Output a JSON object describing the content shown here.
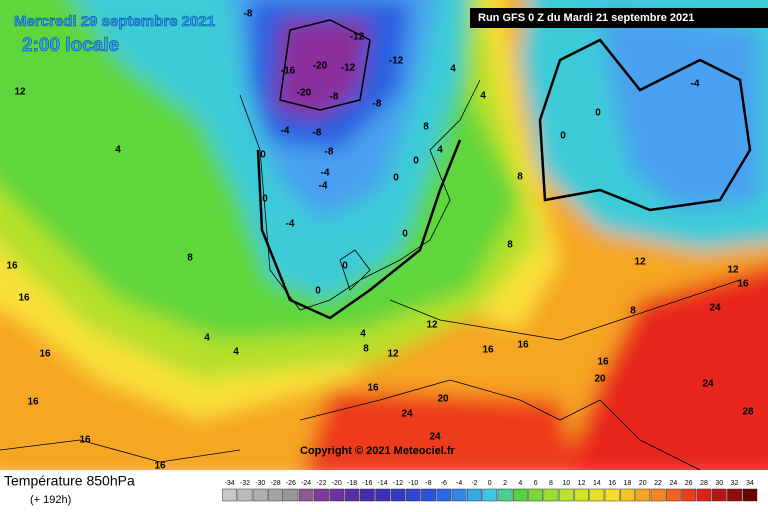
{
  "header": {
    "date": "Mercredi 29 septembre 2021",
    "time": "2:00 locale",
    "run": "Run GFS 0 Z du Mardi 21 septembre 2021"
  },
  "copyright": "Copyright © 2021 Meteociel.fr",
  "footer": {
    "title": "Température 850hPa",
    "lead": "(+ 192h)"
  },
  "scale": [
    -34,
    -32,
    -30,
    -28,
    -26,
    -24,
    -22,
    -20,
    -18,
    -16,
    -14,
    -12,
    -10,
    -8,
    -6,
    -4,
    -2,
    0,
    2,
    4,
    6,
    8,
    10,
    12,
    14,
    16,
    18,
    20,
    22,
    24,
    26,
    28,
    30,
    32,
    34
  ],
  "contour_labels": [
    -8,
    -12,
    -16,
    -20,
    -12,
    -12,
    -20,
    -8,
    -8,
    -4,
    -8,
    -8,
    -4,
    -4,
    0,
    0,
    -4,
    0,
    0,
    4,
    8,
    4,
    4,
    0,
    0,
    -4,
    12,
    4,
    8,
    4,
    4,
    12,
    16,
    16,
    16,
    24,
    20,
    24,
    16,
    16,
    16,
    16,
    16,
    16,
    20,
    24,
    28,
    24,
    16,
    8,
    12,
    12,
    16,
    4,
    8,
    12,
    0,
    0,
    0,
    8,
    8
  ]
}
